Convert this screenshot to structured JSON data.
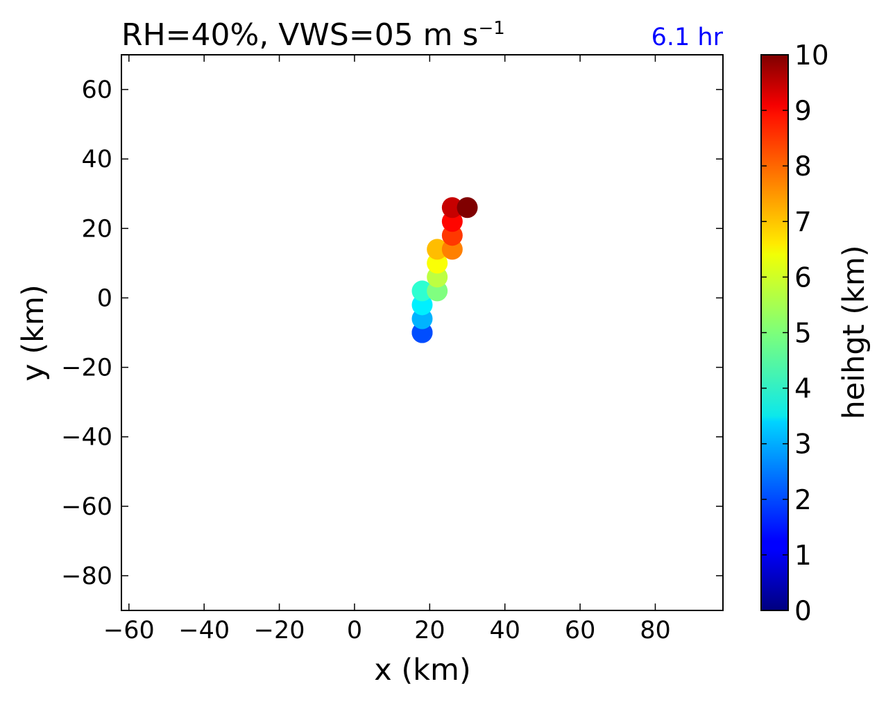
{
  "chart_data": {
    "type": "scatter",
    "title": {
      "main": "RH=40%, VWS=05 m s",
      "superscript": "−1"
    },
    "time_label": "6.1 hr",
    "time_label_color": "#0000ff",
    "xlabel": "x (km)",
    "ylabel": "y (km)",
    "xlim": [
      -62,
      98
    ],
    "ylim": [
      -90,
      70
    ],
    "xticks": [
      -60,
      -40,
      -20,
      0,
      20,
      40,
      60,
      80
    ],
    "yticks": [
      60,
      40,
      20,
      0,
      -20,
      -40,
      -60,
      -80
    ],
    "xtick_labels": [
      "−60",
      "−40",
      "−20",
      "0",
      "20",
      "40",
      "60",
      "80"
    ],
    "ytick_labels": [
      "60",
      "40",
      "20",
      "0",
      "−20",
      "−40",
      "−60",
      "−80"
    ],
    "grid": false,
    "colorscale": "jet",
    "colorbar": {
      "label": "heihgt (km)",
      "range": [
        0,
        10
      ],
      "ticks": [
        "0",
        "1",
        "2",
        "3",
        "4",
        "5",
        "6",
        "7",
        "8",
        "9",
        "10"
      ]
    },
    "points": [
      {
        "x": 18,
        "y": -10,
        "height": 1.5
      },
      {
        "x": 18,
        "y": -10,
        "height": 2.0
      },
      {
        "x": 18,
        "y": -6,
        "height": 3.0
      },
      {
        "x": 18,
        "y": -2,
        "height": 3.6
      },
      {
        "x": 18,
        "y": 2,
        "height": 4.2
      },
      {
        "x": 22,
        "y": 2,
        "height": 5.0
      },
      {
        "x": 22,
        "y": 6,
        "height": 5.6
      },
      {
        "x": 22,
        "y": 10,
        "height": 6.2
      },
      {
        "x": 22,
        "y": 14,
        "height": 6.9
      },
      {
        "x": 26,
        "y": 14,
        "height": 7.5
      },
      {
        "x": 26,
        "y": 18,
        "height": 8.2
      },
      {
        "x": 26,
        "y": 22,
        "height": 8.7
      },
      {
        "x": 26,
        "y": 26,
        "height": 9.3
      },
      {
        "x": 30,
        "y": 26,
        "height": 10.0
      }
    ]
  }
}
